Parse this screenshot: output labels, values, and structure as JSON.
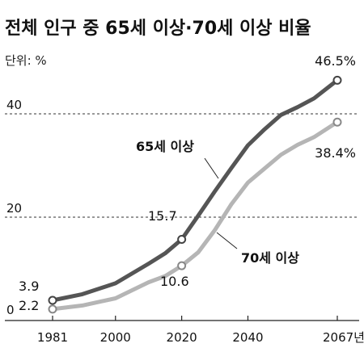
{
  "chart_data": {
    "type": "line",
    "title": "전체 인구 중 65세 이상·70세 이상 비율",
    "unit_label": "단위: %",
    "x_ticks": [
      "1981",
      "2000",
      "2020",
      "2040",
      "2067년"
    ],
    "y_ticks": [
      "0",
      "20",
      "40"
    ],
    "ylim": [
      0,
      50
    ],
    "xlim": [
      1981,
      2067
    ],
    "grid": "dashed horizontal at 20 and 40",
    "series": [
      {
        "name": "65세 이상",
        "color": "#555555",
        "points": [
          [
            1981,
            3.9
          ],
          [
            1990,
            5.1
          ],
          [
            2000,
            7.2
          ],
          [
            2010,
            11.0
          ],
          [
            2015,
            13.0
          ],
          [
            2020,
            15.7
          ],
          [
            2025,
            20.3
          ],
          [
            2030,
            25.0
          ],
          [
            2035,
            29.5
          ],
          [
            2040,
            33.9
          ],
          [
            2045,
            37.0
          ],
          [
            2050,
            39.8
          ],
          [
            2055,
            41.3
          ],
          [
            2060,
            43.0
          ],
          [
            2067,
            46.5
          ]
        ],
        "labels": [
          {
            "x": 1981,
            "text": "3.9"
          },
          {
            "x": 2020,
            "text": "15.7"
          },
          {
            "x": 2067,
            "text": "46.5%"
          }
        ]
      },
      {
        "name": "70세 이상",
        "color": "#b5b5b5",
        "points": [
          [
            1981,
            2.2
          ],
          [
            1990,
            2.9
          ],
          [
            2000,
            4.3
          ],
          [
            2010,
            7.4
          ],
          [
            2015,
            8.6
          ],
          [
            2020,
            10.6
          ],
          [
            2025,
            13.2
          ],
          [
            2030,
            17.5
          ],
          [
            2035,
            22.5
          ],
          [
            2040,
            26.7
          ],
          [
            2045,
            29.4
          ],
          [
            2050,
            32.1
          ],
          [
            2055,
            34.0
          ],
          [
            2060,
            35.5
          ],
          [
            2067,
            38.4
          ]
        ],
        "labels": [
          {
            "x": 1981,
            "text": "2.2"
          },
          {
            "x": 2020,
            "text": "10.6"
          },
          {
            "x": 2067,
            "text": "38.4%"
          }
        ]
      }
    ]
  }
}
